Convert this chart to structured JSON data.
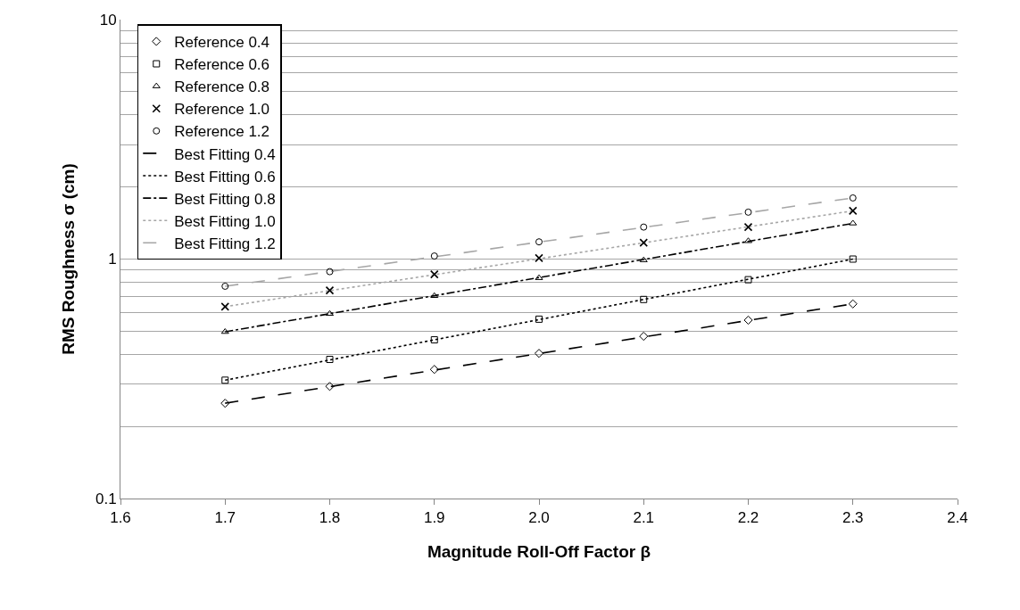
{
  "chart_data": {
    "type": "scatter",
    "xlabel": "Magnitude Roll-Off Factor β",
    "ylabel": "RMS Roughness σ (cm)",
    "log": "y",
    "grid": "y",
    "legend": "top left",
    "x": [
      1.7,
      1.8,
      1.9,
      2.0,
      2.1,
      2.2,
      2.3
    ],
    "xlim": [
      1.6,
      2.4
    ],
    "xticks": [
      {
        "value": 1.6,
        "label": "1.6"
      },
      {
        "value": 1.7,
        "label": "1.7"
      },
      {
        "value": 1.8,
        "label": "1.8"
      },
      {
        "value": 1.9,
        "label": "1.9"
      },
      {
        "value": 2.0,
        "label": "2.0"
      },
      {
        "value": 2.1,
        "label": "2.1"
      },
      {
        "value": 2.2,
        "label": "2.2"
      },
      {
        "value": 2.3,
        "label": "2.3"
      },
      {
        "value": 2.4,
        "label": "2.4"
      }
    ],
    "ylim": [
      0.1,
      10
    ],
    "yticks": [
      0.1,
      {
        "value": 0.2,
        "label": null
      },
      {
        "value": 0.3,
        "label": null
      },
      {
        "value": 0.4,
        "label": null
      },
      {
        "value": 0.5,
        "label": null
      },
      {
        "value": 0.6,
        "label": null
      },
      {
        "value": 0.7,
        "label": null
      },
      {
        "value": 0.8,
        "label": null
      },
      {
        "value": 0.9,
        "label": null
      },
      1,
      {
        "value": 2,
        "label": null
      },
      {
        "value": 3,
        "label": null
      },
      {
        "value": 4,
        "label": null
      },
      {
        "value": 5,
        "label": null
      },
      {
        "value": 6,
        "label": null
      },
      {
        "value": 7,
        "label": null
      },
      {
        "value": 8,
        "label": null
      },
      {
        "value": 9,
        "label": null
      },
      10
    ],
    "series": [
      {
        "name": "Reference 0.4",
        "marker": "diamond",
        "color": "#000000",
        "values": [
          0.25,
          0.294,
          0.346,
          0.404,
          0.476,
          0.556,
          0.65
        ]
      },
      {
        "name": "Reference 0.6",
        "marker": "square",
        "color": "#000000",
        "values": [
          0.312,
          0.381,
          0.46,
          0.561,
          0.678,
          0.82,
          1.0
        ]
      },
      {
        "name": "Reference 0.8",
        "marker": "triangle",
        "color": "#000000",
        "values": [
          0.497,
          0.591,
          0.702,
          0.834,
          0.99,
          1.19,
          1.41
        ]
      },
      {
        "name": "Reference 1.0",
        "marker": "cross",
        "color": "#000000",
        "values": [
          0.633,
          0.74,
          0.863,
          1.01,
          1.17,
          1.36,
          1.59
        ]
      },
      {
        "name": "Reference 1.2",
        "marker": "circle",
        "color": "#000000",
        "values": [
          0.77,
          0.886,
          1.03,
          1.18,
          1.36,
          1.57,
          1.8
        ]
      },
      {
        "name": "Best Fitting 0.4",
        "type": "line",
        "line_style": "longdash",
        "color": "#000000",
        "values": [
          0.25,
          null,
          null,
          null,
          null,
          null,
          0.65
        ]
      },
      {
        "name": "Best Fitting 0.6",
        "type": "line",
        "line_style": "dotted",
        "color": "#000000",
        "values": [
          0.312,
          null,
          null,
          null,
          null,
          null,
          1.0
        ]
      },
      {
        "name": "Best Fitting 0.8",
        "type": "line",
        "line_style": "dashdot",
        "color": "#000000",
        "values": [
          0.497,
          null,
          null,
          null,
          null,
          null,
          1.41
        ]
      },
      {
        "name": "Best Fitting 1.0",
        "type": "line",
        "line_style": "dotted",
        "color": "#a6a6a6",
        "values": [
          0.633,
          null,
          null,
          null,
          null,
          null,
          1.59
        ]
      },
      {
        "name": "Best Fitting 1.2",
        "type": "line",
        "line_style": "longdash",
        "color": "#a6a6a6",
        "values": [
          0.77,
          null,
          null,
          null,
          null,
          null,
          1.8
        ]
      }
    ]
  }
}
